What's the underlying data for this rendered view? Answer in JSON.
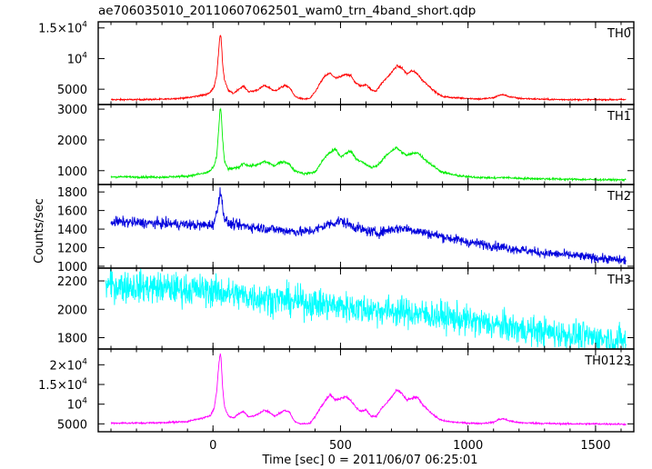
{
  "chart_data": {
    "type": "line",
    "title": "ae706035010_20110607062501_wam0_trn_4band_short.qdp",
    "xlabel": "Time [sec] 0 = 2011/06/07 06:25:01",
    "ylabel": "Counts/sec",
    "xlim": [
      -450,
      1650
    ],
    "x_ticks": [
      {
        "value": 0,
        "label": "0"
      },
      {
        "value": 500,
        "label": "500"
      },
      {
        "value": 1000,
        "label": "1000"
      },
      {
        "value": 1500,
        "label": "1500"
      }
    ],
    "grid": false,
    "panels": [
      {
        "name": "TH0",
        "color": "#ff0000",
        "ylim": [
          2500,
          16000
        ],
        "noise": 90,
        "y_ticks": [
          {
            "value": 5000,
            "label": "5000"
          },
          {
            "value": 10000,
            "label": "10",
            "sup": "4"
          },
          {
            "value": 15000,
            "label": "1.5×10",
            "sup": "4"
          }
        ],
        "series": {
          "x": [
            -400,
            -300,
            -200,
            -100,
            -60,
            -30,
            -10,
            5,
            15,
            22,
            28,
            32,
            38,
            45,
            60,
            80,
            100,
            120,
            140,
            160,
            180,
            200,
            220,
            240,
            260,
            280,
            300,
            320,
            340,
            360,
            380,
            400,
            420,
            440,
            460,
            480,
            500,
            520,
            540,
            560,
            580,
            600,
            620,
            640,
            660,
            680,
            700,
            720,
            740,
            760,
            780,
            800,
            820,
            840,
            860,
            880,
            900,
            950,
            1000,
            1050,
            1100,
            1120,
            1140,
            1160,
            1200,
            1300,
            1400,
            1500,
            1620
          ],
          "y": [
            3300,
            3300,
            3350,
            3600,
            3900,
            4100,
            4500,
            5500,
            7500,
            11000,
            14000,
            13500,
            9000,
            6500,
            4800,
            4300,
            5000,
            5500,
            4600,
            4700,
            5000,
            5600,
            5300,
            4700,
            5100,
            5600,
            5300,
            3900,
            3500,
            3400,
            3500,
            4500,
            6000,
            7200,
            7600,
            6800,
            7000,
            7500,
            7200,
            6000,
            5500,
            5800,
            4900,
            4700,
            5900,
            6800,
            7700,
            8800,
            8500,
            7500,
            8000,
            7600,
            6500,
            5800,
            5000,
            4300,
            3800,
            3600,
            3500,
            3400,
            3600,
            4000,
            4100,
            3800,
            3500,
            3350,
            3300,
            3300,
            3300
          ]
        }
      },
      {
        "name": "TH1",
        "color": "#00ee00",
        "ylim": [
          550,
          3150
        ],
        "noise": 25,
        "y_ticks": [
          {
            "value": 1000,
            "label": "1000"
          },
          {
            "value": 2000,
            "label": "2000"
          },
          {
            "value": 3000,
            "label": "3000"
          }
        ],
        "series": {
          "x": [
            -400,
            -200,
            -100,
            -60,
            -30,
            -10,
            5,
            15,
            22,
            28,
            32,
            38,
            45,
            60,
            100,
            120,
            140,
            180,
            200,
            220,
            240,
            260,
            280,
            300,
            320,
            360,
            400,
            420,
            440,
            460,
            480,
            500,
            520,
            540,
            560,
            600,
            620,
            640,
            660,
            680,
            700,
            720,
            740,
            760,
            780,
            800,
            820,
            840,
            880,
            900,
            950,
            1000,
            1050,
            1100,
            1140,
            1160,
            1200,
            1400,
            1620
          ],
          "y": [
            800,
            790,
            820,
            880,
            920,
            1000,
            1150,
            1500,
            2300,
            3050,
            2900,
            2000,
            1300,
            1050,
            1100,
            1250,
            1150,
            1200,
            1300,
            1250,
            1150,
            1250,
            1300,
            1200,
            1000,
            900,
            950,
            1200,
            1450,
            1600,
            1700,
            1450,
            1550,
            1650,
            1400,
            1200,
            1100,
            1150,
            1300,
            1500,
            1650,
            1750,
            1600,
            1500,
            1550,
            1600,
            1450,
            1300,
            1050,
            950,
            850,
            800,
            780,
            760,
            780,
            770,
            750,
            720,
            700
          ]
        }
      },
      {
        "name": "TH2",
        "color": "#0000dd",
        "ylim": [
          980,
          1880
        ],
        "noise": 40,
        "y_ticks": [
          {
            "value": 1000,
            "label": "1000"
          },
          {
            "value": 1200,
            "label": "1200"
          },
          {
            "value": 1400,
            "label": "1400"
          },
          {
            "value": 1600,
            "label": "1600"
          },
          {
            "value": 1800,
            "label": "1800"
          }
        ],
        "series": {
          "x": [
            -400,
            -300,
            -200,
            -100,
            -50,
            0,
            10,
            20,
            28,
            35,
            45,
            60,
            100,
            200,
            300,
            350,
            400,
            450,
            500,
            550,
            600,
            650,
            700,
            750,
            800,
            900,
            1000,
            1100,
            1200,
            1300,
            1400,
            1500,
            1620
          ],
          "y": [
            1480,
            1470,
            1460,
            1450,
            1440,
            1450,
            1520,
            1650,
            1830,
            1700,
            1520,
            1460,
            1440,
            1410,
            1380,
            1370,
            1390,
            1450,
            1490,
            1430,
            1380,
            1360,
            1400,
            1410,
            1380,
            1320,
            1260,
            1220,
            1180,
            1140,
            1120,
            1090,
            1060
          ]
        }
      },
      {
        "name": "TH3",
        "color": "#00ffff",
        "ylim": [
          1720,
          2290
        ],
        "noise": 80,
        "y_ticks": [
          {
            "value": 1800,
            "label": "1800"
          },
          {
            "value": 2000,
            "label": "2000"
          },
          {
            "value": 2200,
            "label": "2200"
          }
        ],
        "series": {
          "x": [
            -420,
            -300,
            -200,
            -100,
            0,
            100,
            200,
            300,
            400,
            500,
            600,
            700,
            800,
            900,
            1000,
            1100,
            1200,
            1300,
            1400,
            1500,
            1620
          ],
          "y": [
            2170,
            2160,
            2150,
            2140,
            2130,
            2100,
            2080,
            2060,
            2040,
            2020,
            2000,
            1990,
            1970,
            1950,
            1920,
            1890,
            1860,
            1840,
            1820,
            1800,
            1780
          ]
        }
      },
      {
        "name": "TH0123",
        "color": "#ff00ff",
        "ylim": [
          3000,
          24000
        ],
        "noise": 150,
        "y_ticks": [
          {
            "value": 5000,
            "label": "5000"
          },
          {
            "value": 10000,
            "label": "10",
            "sup": "4"
          },
          {
            "value": 15000,
            "label": "1.5×10",
            "sup": "4"
          },
          {
            "value": 20000,
            "label": "2×10",
            "sup": "4"
          }
        ],
        "series": {
          "x": [
            -400,
            -300,
            -200,
            -100,
            -60,
            -30,
            -10,
            5,
            15,
            22,
            28,
            32,
            38,
            45,
            60,
            80,
            100,
            120,
            140,
            160,
            180,
            200,
            220,
            240,
            260,
            280,
            300,
            320,
            340,
            360,
            380,
            400,
            420,
            440,
            460,
            480,
            500,
            520,
            540,
            560,
            580,
            600,
            620,
            640,
            660,
            680,
            700,
            720,
            740,
            760,
            780,
            800,
            820,
            840,
            860,
            880,
            900,
            950,
            1000,
            1050,
            1100,
            1120,
            1140,
            1160,
            1200,
            1300,
            1400,
            1500,
            1620
          ],
          "y": [
            5200,
            5200,
            5300,
            5600,
            6200,
            6600,
            7200,
            9000,
            13500,
            19500,
            23000,
            21500,
            14000,
            9500,
            7000,
            6500,
            7500,
            8200,
            6800,
            7000,
            7600,
            8500,
            8000,
            7000,
            7600,
            8500,
            7900,
            5600,
            5100,
            5000,
            5100,
            6800,
            9000,
            11000,
            12500,
            11000,
            11500,
            12000,
            11000,
            9200,
            8200,
            8500,
            7000,
            6900,
            8800,
            10200,
            11800,
            13500,
            12800,
            11000,
            11500,
            11800,
            10000,
            8800,
            7500,
            6500,
            5800,
            5400,
            5200,
            5100,
            5400,
            6100,
            6300,
            5800,
            5300,
            5100,
            5000,
            5000,
            4900
          ]
        }
      }
    ]
  }
}
